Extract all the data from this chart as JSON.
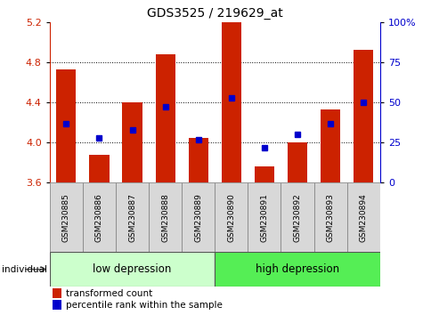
{
  "title": "GDS3525 / 219629_at",
  "samples": [
    "GSM230885",
    "GSM230886",
    "GSM230887",
    "GSM230888",
    "GSM230889",
    "GSM230890",
    "GSM230891",
    "GSM230892",
    "GSM230893",
    "GSM230894"
  ],
  "transformed_count": [
    4.73,
    3.88,
    4.4,
    4.88,
    4.05,
    5.2,
    3.76,
    4.0,
    4.33,
    4.92
  ],
  "percentile_rank_pct": [
    37,
    28,
    33,
    47,
    27,
    53,
    22,
    30,
    37,
    50
  ],
  "ylim": [
    3.6,
    5.2
  ],
  "yticks_left": [
    3.6,
    4.0,
    4.4,
    4.8,
    5.2
  ],
  "yticks_right": [
    0,
    25,
    50,
    75,
    100
  ],
  "bar_color": "#cc2200",
  "dot_color": "#0000cc",
  "group_labels": [
    "low depression",
    "high depression"
  ],
  "group_colors_low": "#ccffcc",
  "group_colors_high": "#55ee55",
  "group_split": 5,
  "baseline": 3.6,
  "grid_yticks": [
    4.0,
    4.4,
    4.8
  ]
}
